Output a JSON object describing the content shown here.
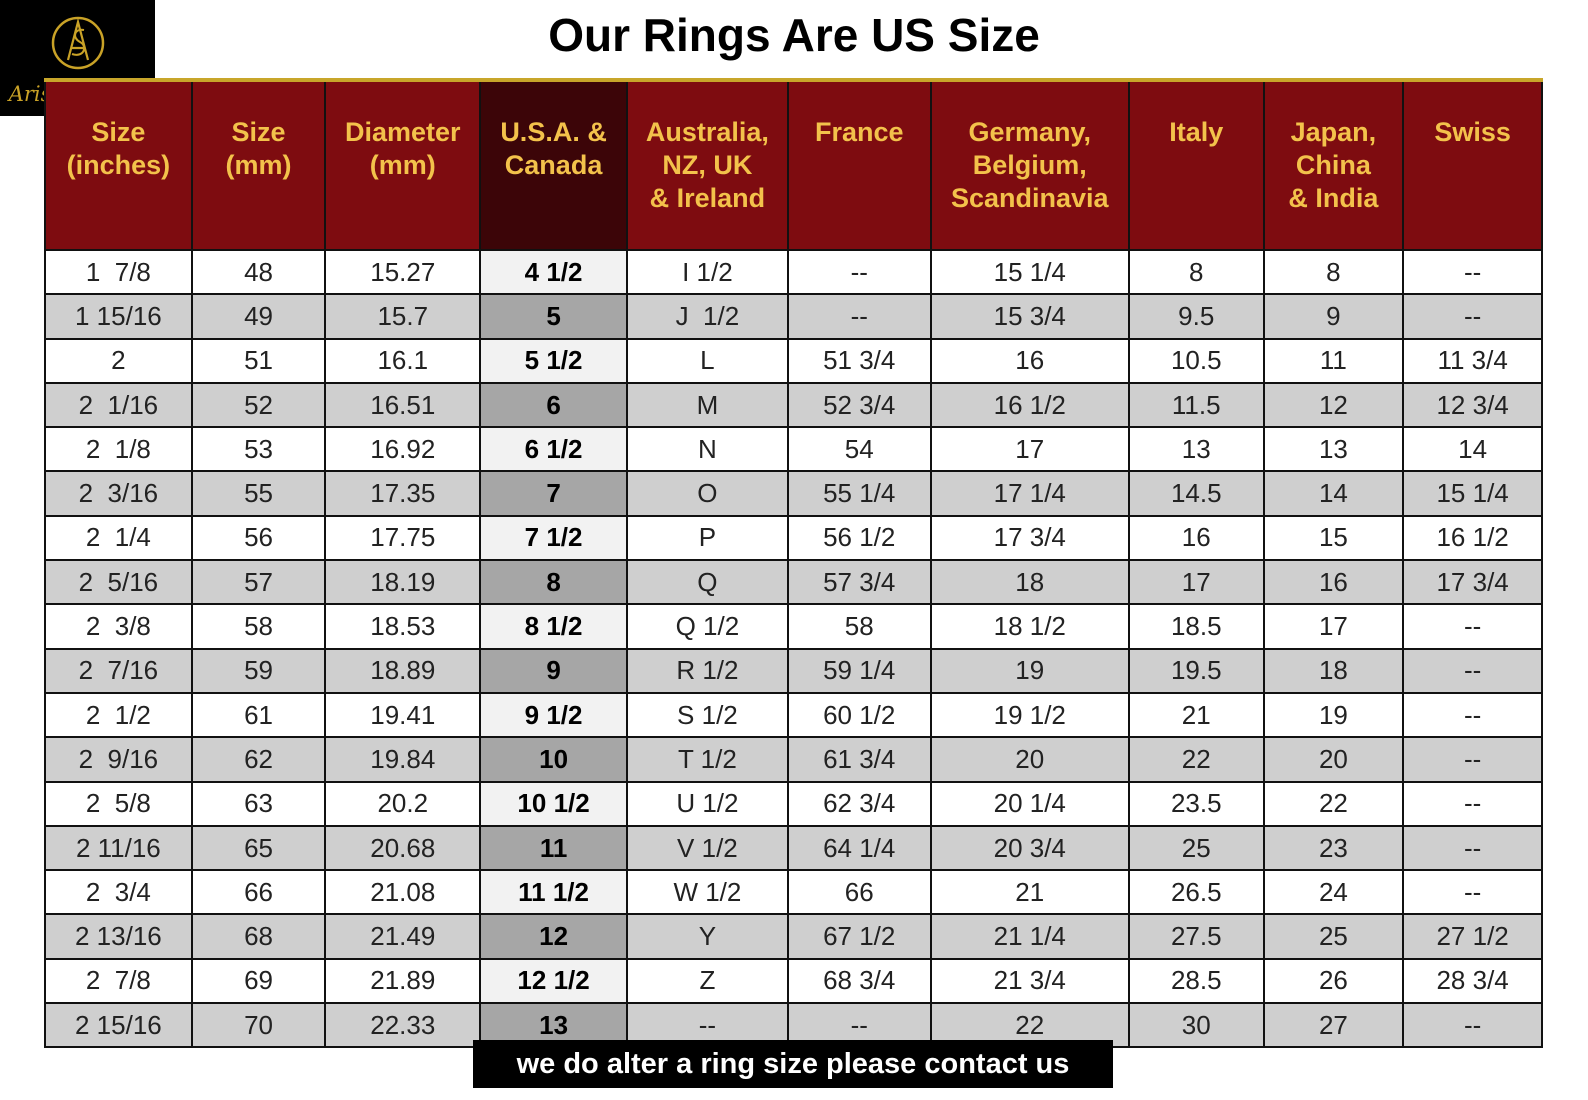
{
  "logo": {
    "text": "Arisha Silver",
    "accent_color": "#c9a227"
  },
  "title": "Our Rings Are US Size",
  "table": {
    "headers": [
      [
        "Size",
        "(inches)"
      ],
      [
        "Size",
        "(mm)"
      ],
      [
        "Diameter",
        "(mm)"
      ],
      [
        "U.S.A. &",
        "Canada"
      ],
      [
        "Australia,",
        "NZ, UK",
        "& Ireland"
      ],
      [
        "France"
      ],
      [
        "Germany,",
        "Belgium,",
        "Scandinavia"
      ],
      [
        "Italy"
      ],
      [
        "Japan,",
        "China",
        "& India"
      ],
      [
        "Swiss"
      ]
    ],
    "rows": [
      [
        "1  7/8",
        "48",
        "15.27",
        "4 1/2",
        "I 1/2",
        "--",
        "15 1/4",
        "8",
        "8",
        "--"
      ],
      [
        "1 15/16",
        "49",
        "15.7",
        "5",
        "J  1/2",
        "--",
        "15 3/4",
        "9.5",
        "9",
        "--"
      ],
      [
        "2",
        "51",
        "16.1",
        "5 1/2",
        "L",
        "51 3/4",
        "16",
        "10.5",
        "11",
        "11 3/4"
      ],
      [
        "2  1/16",
        "52",
        "16.51",
        "6",
        "M",
        "52 3/4",
        "16 1/2",
        "11.5",
        "12",
        "12 3/4"
      ],
      [
        "2  1/8",
        "53",
        "16.92",
        "6 1/2",
        "N",
        "54",
        "17",
        "13",
        "13",
        "14"
      ],
      [
        "2  3/16",
        "55",
        "17.35",
        "7",
        "O",
        "55 1/4",
        "17 1/4",
        "14.5",
        "14",
        "15 1/4"
      ],
      [
        "2  1/4",
        "56",
        "17.75",
        "7 1/2",
        "P",
        "56 1/2",
        "17 3/4",
        "16",
        "15",
        "16 1/2"
      ],
      [
        "2  5/16",
        "57",
        "18.19",
        "8",
        "Q",
        "57 3/4",
        "18",
        "17",
        "16",
        "17 3/4"
      ],
      [
        "2  3/8",
        "58",
        "18.53",
        "8 1/2",
        "Q 1/2",
        "58",
        "18 1/2",
        "18.5",
        "17",
        "--"
      ],
      [
        "2  7/16",
        "59",
        "18.89",
        "9",
        "R 1/2",
        "59 1/4",
        "19",
        "19.5",
        "18",
        "--"
      ],
      [
        "2  1/2",
        "61",
        "19.41",
        "9 1/2",
        "S 1/2",
        "60 1/2",
        "19 1/2",
        "21",
        "19",
        "--"
      ],
      [
        "2  9/16",
        "62",
        "19.84",
        "10",
        "T 1/2",
        "61 3/4",
        "20",
        "22",
        "20",
        "--"
      ],
      [
        "2  5/8",
        "63",
        "20.2",
        "10 1/2",
        "U 1/2",
        "62 3/4",
        "20 1/4",
        "23.5",
        "22",
        "--"
      ],
      [
        "2 11/16",
        "65",
        "20.68",
        "11",
        "V 1/2",
        "64 1/4",
        "20 3/4",
        "25",
        "23",
        "--"
      ],
      [
        "2  3/4",
        "66",
        "21.08",
        "11 1/2",
        "W 1/2",
        "66",
        "21",
        "26.5",
        "24",
        "--"
      ],
      [
        "2 13/16",
        "68",
        "21.49",
        "12",
        "Y",
        "67 1/2",
        "21 1/4",
        "27.5",
        "25",
        "27 1/2"
      ],
      [
        "2  7/8",
        "69",
        "21.89",
        "12 1/2",
        "Z",
        "68 3/4",
        "21 3/4",
        "28.5",
        "26",
        "28 3/4"
      ],
      [
        "2 15/16",
        "70",
        "22.33",
        "13",
        "--",
        "--",
        "22",
        "30",
        "27",
        "--"
      ]
    ]
  },
  "footer": "we do alter a ring size please contact us",
  "colors": {
    "header_bg": "#7e0c10",
    "header_highlight_bg": "#3c0508",
    "header_text": "#f3c24b",
    "row_alt": "#cfcfcf"
  }
}
